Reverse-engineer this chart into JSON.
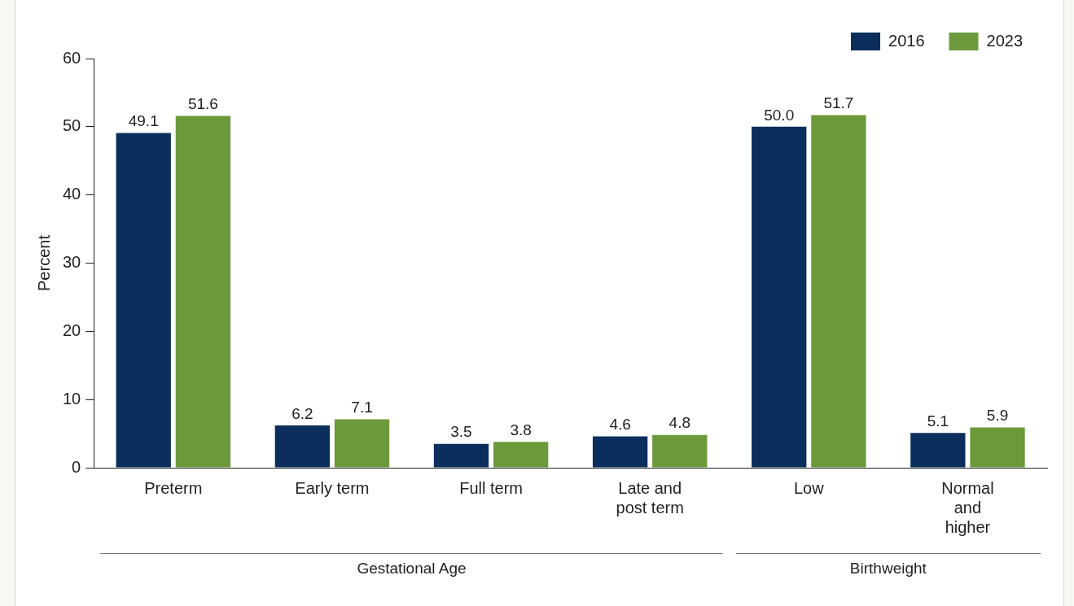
{
  "chart_data": {
    "type": "bar",
    "ylabel": "Percent",
    "categories": [
      "Preterm",
      "Early term",
      "Full term",
      "Late and post term",
      "Low",
      "Normal and higher"
    ],
    "series": [
      {
        "name": "2016",
        "color": "#0b2e5c",
        "values": [
          49.1,
          6.2,
          3.5,
          4.6,
          50.0,
          5.1
        ],
        "value_labels": [
          "49.1",
          "6.2",
          "3.5",
          "4.6",
          "50.0",
          "5.1"
        ]
      },
      {
        "name": "2023",
        "color": "#6c9a3b",
        "values": [
          51.6,
          7.1,
          3.8,
          4.8,
          51.7,
          5.9
        ],
        "value_labels": [
          "51.6",
          "7.1",
          "3.8",
          "4.8",
          "51.7",
          "5.9"
        ]
      }
    ],
    "ylim": [
      0,
      60
    ],
    "yticks": [
      0,
      10,
      20,
      30,
      40,
      50,
      60
    ],
    "grid": false,
    "legend": "top right",
    "annotations": [
      "Gestational Age",
      "Birthweight"
    ]
  }
}
